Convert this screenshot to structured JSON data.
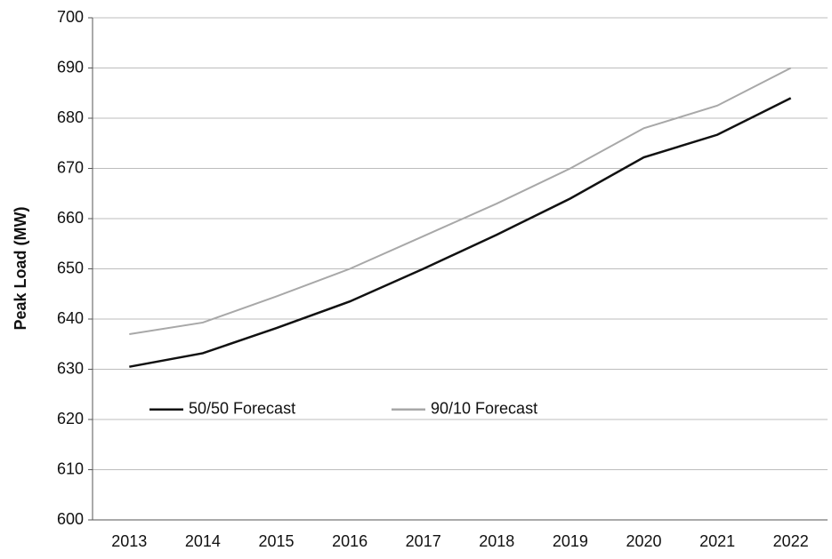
{
  "chart_data": {
    "type": "line",
    "y_label": "Peak Load (MW)",
    "categories": [
      "2013",
      "2014",
      "2015",
      "2016",
      "2017",
      "2018",
      "2019",
      "2020",
      "2021",
      "2022"
    ],
    "series": [
      {
        "name": "50/50 Forecast",
        "color": "#111111",
        "values": [
          630.5,
          633.2,
          638.2,
          643.5,
          650,
          656.8,
          664,
          672.2,
          676.7,
          684
        ]
      },
      {
        "name": "90/10 Forecast",
        "color": "#a8a8a8",
        "values": [
          637,
          639.3,
          644.5,
          650,
          656.5,
          663,
          670,
          678,
          682.5,
          690
        ]
      }
    ],
    "ylim": [
      600,
      700
    ],
    "yticks": [
      600,
      610,
      620,
      630,
      640,
      650,
      660,
      670,
      680,
      690,
      700
    ],
    "grid": true,
    "legend": "lower-left"
  }
}
